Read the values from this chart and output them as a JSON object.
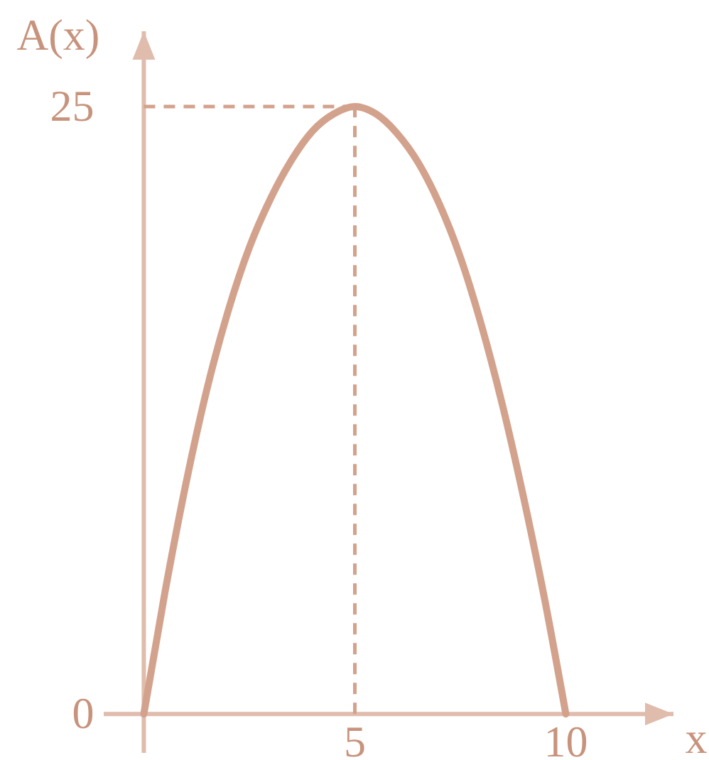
{
  "chart_data": {
    "type": "line",
    "xlabel": "x",
    "ylabel": "A(x)",
    "x": [
      0,
      0.5,
      1,
      1.5,
      2,
      2.5,
      3,
      3.5,
      4,
      4.5,
      5,
      5.5,
      6,
      6.5,
      7,
      7.5,
      8,
      8.5,
      9,
      9.5,
      10
    ],
    "series": [
      {
        "color": "#d3a28d",
        "values": [
          0,
          5.0,
          9.5,
          13.4,
          16.6,
          19.2,
          21.2,
          22.8,
          24.0,
          24.7,
          25,
          24.7,
          23.9,
          22.7,
          21.0,
          18.8,
          16.0,
          12.7,
          8.9,
          4.7,
          0
        ]
      }
    ],
    "xlim": [
      -0.95,
      12.55
    ],
    "ylim": [
      -1.6,
      28.1
    ],
    "xticks": [
      5,
      10
    ],
    "yticks": [
      0,
      25
    ],
    "ref_lines": [
      {
        "axis": "y",
        "value": 25,
        "color": "#d3a28d",
        "line_style": "dashed"
      },
      {
        "axis": "x",
        "value": 5,
        "color": "#d3a28d",
        "line_style": "dashed"
      }
    ],
    "line_style": "solid"
  }
}
